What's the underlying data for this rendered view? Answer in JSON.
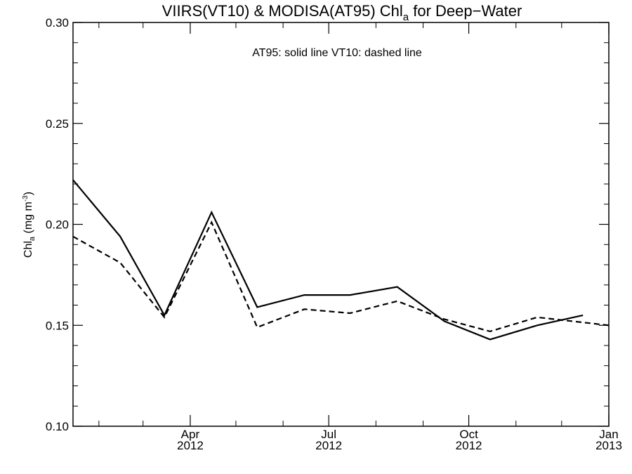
{
  "chart_data": {
    "type": "line",
    "title": {
      "prefix": "VIIRS(VT10) & MODISA(AT95)  Chl",
      "subscript": "a",
      "suffix": " for Deep−Water"
    },
    "annotation": "AT95: solid line   VT10: dashed line",
    "ylabel": {
      "prefix": "Chl",
      "subscript": "a",
      "middle": " (mg m",
      "superscript": "-3",
      "suffix": ")"
    },
    "ylim": [
      0.1,
      0.3
    ],
    "yticks": [
      "0.10",
      "0.15",
      "0.20",
      "0.25",
      "0.30"
    ],
    "xlim": [
      "2012-01-15",
      "2013-01-01"
    ],
    "xticks": [
      {
        "date": "2012-04-01",
        "month": "Apr",
        "year": "2012"
      },
      {
        "date": "2012-07-01",
        "month": "Jul",
        "year": "2012"
      },
      {
        "date": "2012-10-01",
        "month": "Oct",
        "year": "2012"
      },
      {
        "date": "2013-01-01",
        "month": "Jan",
        "year": "2013"
      }
    ],
    "x": [
      "2012-01-15",
      "2012-02-15",
      "2012-03-15",
      "2012-04-15",
      "2012-05-15",
      "2012-06-15",
      "2012-07-15",
      "2012-08-15",
      "2012-09-15",
      "2012-10-15",
      "2012-11-15",
      "2012-12-15",
      "2013-01-01"
    ],
    "series": [
      {
        "name": "AT95",
        "style": "solid",
        "values": [
          0.222,
          0.194,
          0.155,
          0.206,
          0.159,
          0.165,
          0.165,
          0.169,
          0.152,
          0.143,
          0.15,
          0.155,
          null
        ]
      },
      {
        "name": "VT10",
        "style": "dashed",
        "values": [
          0.194,
          0.181,
          0.154,
          0.201,
          0.149,
          0.158,
          0.156,
          0.162,
          0.153,
          0.147,
          0.154,
          null,
          0.15
        ]
      }
    ],
    "grid": false,
    "legend": "top-center text annotation"
  }
}
